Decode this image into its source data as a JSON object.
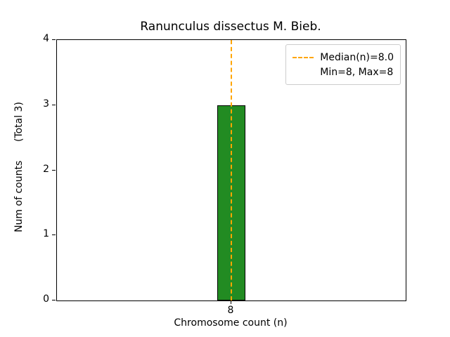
{
  "chart_data": {
    "type": "bar",
    "title": "Ranunculus dissectus M. Bieb.",
    "xlabel": "Chromosome count (n)",
    "ylabel": "Num of counts      (Total 3)",
    "categories": [
      "8"
    ],
    "values": [
      3
    ],
    "total_counts": 3,
    "ylim": [
      0,
      4
    ],
    "yticks": [
      0,
      1,
      2,
      3,
      4
    ],
    "xticks": [
      "8"
    ],
    "grid": false,
    "bar_color": "#228B22",
    "bar_edge_color": "#000000",
    "median_line": {
      "value": 8.0,
      "color": "#ffa500",
      "style": "dashed"
    },
    "legend": {
      "position": "upper right",
      "entries": [
        {
          "label": "Median(n)=8.0",
          "symbol": "dashed-line",
          "color": "#ffa500"
        },
        {
          "label": "Min=8, Max=8",
          "symbol": "none",
          "color": ""
        }
      ]
    }
  }
}
